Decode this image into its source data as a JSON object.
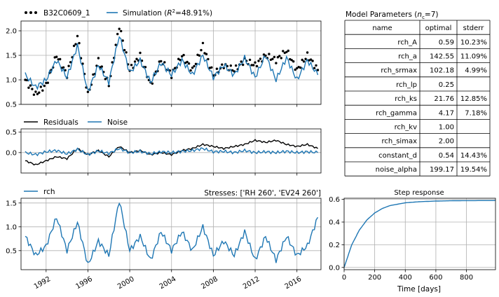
{
  "colors": {
    "obs": "#000000",
    "sim": "#1f77b4",
    "noise": "#1f77b4",
    "residuals": "#000000",
    "grid": "#b0b0b0"
  },
  "chart_data": [
    {
      "id": "fit",
      "type": "line",
      "legend": [
        {
          "label": "B32C0609_1",
          "style": "dots",
          "color": "#000000"
        },
        {
          "label": "Simulation",
          "r2_text": "2",
          "r2_value": "=48.91%)",
          "style": "line",
          "color": "#1f77b4"
        }
      ],
      "xlim": [
        1989.6,
        2018.3
      ],
      "ylim": [
        0.5,
        2.2
      ],
      "yticks": [
        0.5,
        1.0,
        1.5,
        2.0
      ],
      "series": [
        {
          "name": "B32C0609_1",
          "style": "dots",
          "x": [
            1990,
            1991,
            1992,
            1993,
            1994,
            1995,
            1996,
            1997,
            1998,
            1999,
            2000,
            2001,
            2002,
            2003,
            2004,
            2005,
            2006,
            2007,
            2008,
            2009,
            2010,
            2011,
            2012,
            2013,
            2014,
            2015,
            2016,
            2017,
            2018
          ],
          "y": [
            1.0,
            0.7,
            0.9,
            1.5,
            1.1,
            1.9,
            0.7,
            1.4,
            0.9,
            2.1,
            1.2,
            1.5,
            0.9,
            1.4,
            1.1,
            1.5,
            1.2,
            1.7,
            1.1,
            1.3,
            1.2,
            1.4,
            1.3,
            1.5,
            1.4,
            1.6,
            1.2,
            1.5,
            1.2
          ]
        },
        {
          "name": "Simulation",
          "style": "line",
          "x": [
            1990,
            1991,
            1992,
            1993,
            1994,
            1995,
            1996,
            1997,
            1998,
            1999,
            2000,
            2001,
            2002,
            2003,
            2004,
            2005,
            2006,
            2007,
            2008,
            2009,
            2010,
            2011,
            2012,
            2013,
            2014,
            2015,
            2016,
            2017,
            2018
          ],
          "y": [
            1.1,
            0.85,
            1.0,
            1.4,
            1.05,
            1.7,
            0.75,
            1.3,
            0.95,
            1.9,
            1.15,
            1.4,
            0.95,
            1.35,
            1.1,
            1.4,
            1.1,
            1.5,
            1.05,
            1.3,
            1.1,
            1.45,
            1.05,
            1.5,
            1.0,
            1.45,
            1.0,
            1.4,
            1.1
          ]
        }
      ]
    },
    {
      "id": "residuals",
      "type": "line",
      "legend": [
        {
          "label": "Residuals",
          "color": "#000000"
        },
        {
          "label": "Noise",
          "color": "#1f77b4"
        }
      ],
      "xlim": [
        1989.6,
        2018.3
      ],
      "ylim": [
        -0.5,
        0.58
      ],
      "yticks": [
        0.0,
        0.5
      ],
      "ytick_labels": [
        "0.0",
        "0.5"
      ],
      "series": [
        {
          "name": "Residuals",
          "x": [
            1990,
            1991,
            1992,
            1993,
            1994,
            1995,
            1996,
            1997,
            1998,
            1999,
            2000,
            2001,
            2002,
            2003,
            2004,
            2005,
            2006,
            2007,
            2008,
            2009,
            2010,
            2011,
            2012,
            2013,
            2014,
            2015,
            2016,
            2017,
            2018
          ],
          "y": [
            -0.2,
            -0.3,
            -0.2,
            -0.1,
            -0.15,
            0.1,
            -0.05,
            0.05,
            -0.1,
            0.15,
            0.0,
            0.05,
            -0.05,
            0.0,
            -0.05,
            0.05,
            0.1,
            0.2,
            0.15,
            0.1,
            0.15,
            0.2,
            0.3,
            0.25,
            0.3,
            0.2,
            0.15,
            0.2,
            0.1
          ]
        },
        {
          "name": "Noise",
          "x": [
            1990,
            1991,
            1992,
            1993,
            1994,
            1995,
            1996,
            1997,
            1998,
            1999,
            2000,
            2001,
            2002,
            2003,
            2004,
            2005,
            2006,
            2007,
            2008,
            2009,
            2010,
            2011,
            2012,
            2013,
            2014,
            2015,
            2016,
            2017,
            2018
          ],
          "y": [
            0.0,
            -0.05,
            0.02,
            0.05,
            -0.03,
            0.08,
            -0.05,
            0.04,
            -0.02,
            0.1,
            0.0,
            0.03,
            -0.03,
            0.02,
            0.0,
            0.03,
            0.05,
            0.1,
            0.02,
            0.03,
            0.0,
            0.05,
            0.0,
            0.02,
            0.0,
            0.03,
            0.0,
            0.02,
            0.0
          ]
        }
      ]
    },
    {
      "id": "contrib",
      "type": "line",
      "legend": [
        {
          "label": "rch",
          "color": "#1f77b4"
        }
      ],
      "right_title": "Stresses: ['RH 260', 'EV24 260']",
      "xlim": [
        1989.6,
        2018.3
      ],
      "ylim": [
        0.1,
        1.6
      ],
      "yticks": [
        0.5,
        1.0,
        1.5
      ],
      "xticks": [
        1992,
        1996,
        2000,
        2004,
        2008,
        2012,
        2016
      ],
      "xtick_labels": [
        "1992",
        "1996",
        "2000",
        "2004",
        "2008",
        "2012",
        "2016"
      ],
      "series": [
        {
          "name": "rch",
          "x": [
            1990,
            1991,
            1992,
            1993,
            1994,
            1995,
            1996,
            1997,
            1998,
            1999,
            2000,
            2001,
            2002,
            2003,
            2004,
            2005,
            2006,
            2007,
            2008,
            2009,
            2010,
            2011,
            2012,
            2013,
            2014,
            2015,
            2016,
            2017,
            2018
          ],
          "y": [
            0.8,
            0.4,
            0.6,
            1.2,
            0.5,
            1.1,
            0.2,
            0.7,
            0.4,
            1.55,
            0.5,
            0.8,
            0.3,
            0.9,
            0.5,
            0.9,
            0.5,
            1.0,
            0.4,
            0.7,
            0.4,
            0.9,
            0.3,
            0.8,
            0.3,
            0.8,
            0.4,
            0.6,
            1.2
          ]
        }
      ]
    },
    {
      "id": "step",
      "type": "line",
      "title": "Step response",
      "xlabel": "Time [days]",
      "xlim": [
        0,
        990
      ],
      "ylim": [
        -0.02,
        0.61
      ],
      "xticks": [
        0,
        200,
        400,
        600,
        800
      ],
      "xtick_labels": [
        "0",
        "200",
        "400",
        "600",
        "800"
      ],
      "yticks": [
        0.0,
        0.2,
        0.4,
        0.6
      ],
      "ytick_labels": [
        "0.0",
        "0.2",
        "0.4",
        "0.6"
      ],
      "series": [
        {
          "name": "step",
          "x": [
            0,
            50,
            100,
            150,
            200,
            250,
            300,
            400,
            500,
            600,
            700,
            800,
            990
          ],
          "y": [
            0.0,
            0.2,
            0.33,
            0.42,
            0.48,
            0.52,
            0.545,
            0.57,
            0.58,
            0.585,
            0.588,
            0.589,
            0.59
          ]
        }
      ]
    }
  ],
  "params_table": {
    "title": "Model Parameters (",
    "title_sub": "c",
    "title_tail": "=7)",
    "headers": [
      "name",
      "optimal",
      "stderr"
    ],
    "rows": [
      [
        "rch_A",
        "0.59",
        "10.23%"
      ],
      [
        "rch_a",
        "142.55",
        "11.09%"
      ],
      [
        "rch_srmax",
        "102.18",
        "4.99%"
      ],
      [
        "rch_lp",
        "0.25",
        ""
      ],
      [
        "rch_ks",
        "21.76",
        "12.85%"
      ],
      [
        "rch_gamma",
        "4.17",
        "7.18%"
      ],
      [
        "rch_kv",
        "1.00",
        ""
      ],
      [
        "rch_simax",
        "2.00",
        ""
      ],
      [
        "constant_d",
        "0.54",
        "14.43%"
      ],
      [
        "noise_alpha",
        "199.17",
        "19.54%"
      ]
    ]
  }
}
